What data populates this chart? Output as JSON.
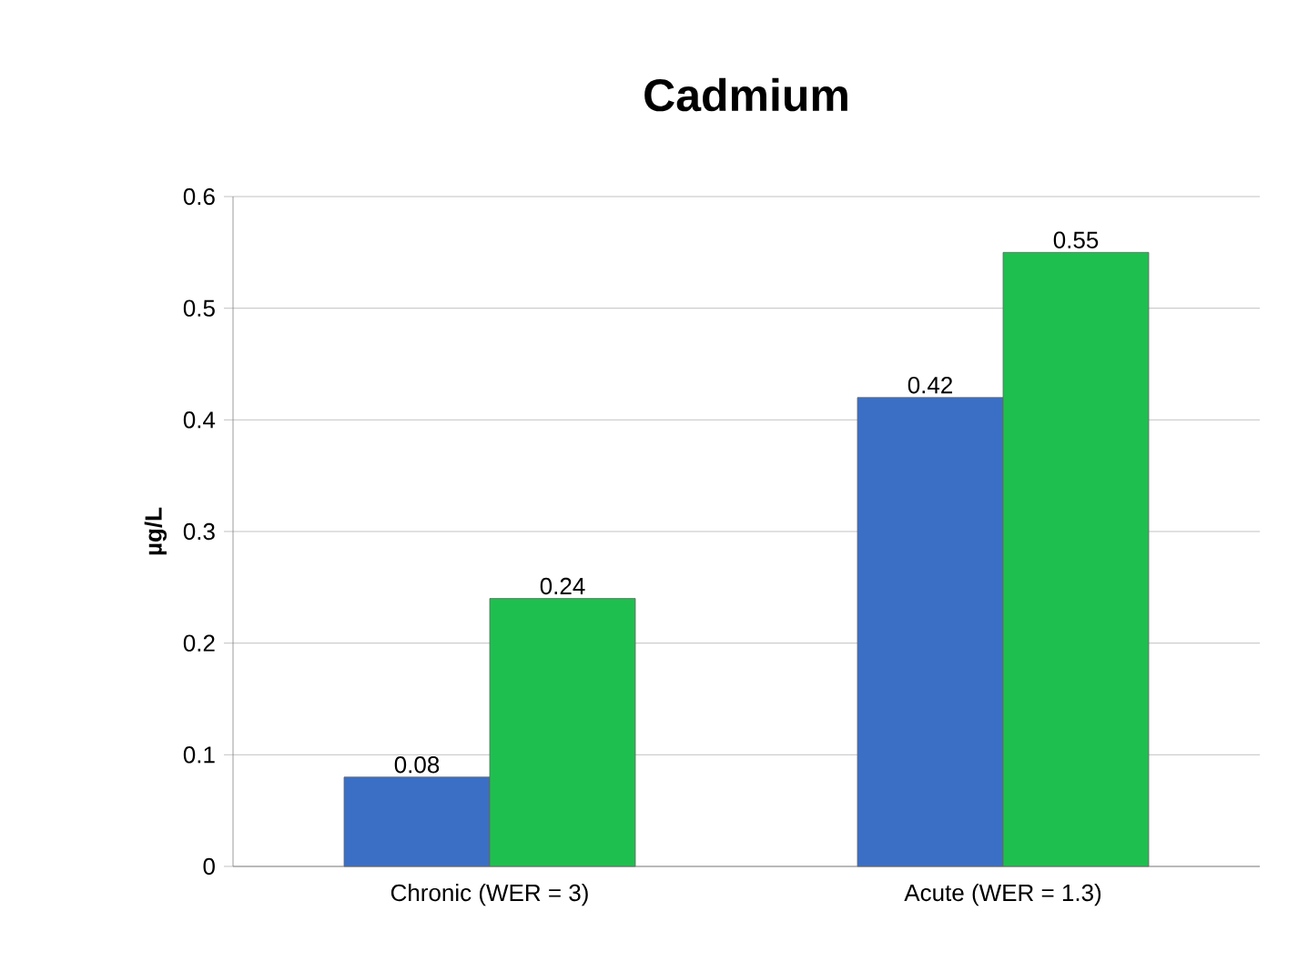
{
  "chart_data": {
    "type": "bar",
    "title": "Cadmium",
    "ylabel": "µg/L",
    "categories": [
      "Chronic (WER = 3)",
      "Acute (WER = 1.3)"
    ],
    "series": [
      {
        "color": "#3b6fc6",
        "values": [
          0.08,
          0.42
        ]
      },
      {
        "color": "#1fbf4f",
        "values": [
          0.24,
          0.55
        ]
      }
    ],
    "ylim": [
      0,
      0.6
    ],
    "yticks": [
      0,
      0.1,
      0.2,
      0.3,
      0.4,
      0.5,
      0.6
    ],
    "grid": "y",
    "data_labels": true
  }
}
